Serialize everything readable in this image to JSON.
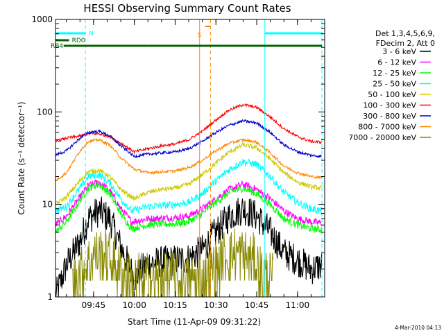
{
  "chart_data": {
    "type": "line",
    "title": "HESSI Observing Summary Count Rates",
    "xlabel": "Start Time (11-Apr-09 09:31:22)",
    "ylabel": "Count Rate (s⁻¹ detector⁻¹)",
    "xscale": "time (minutes)",
    "yscale": "log",
    "xlim": [
      "09:31",
      "11:10"
    ],
    "ylim": [
      1,
      1000
    ],
    "x_ticks": [
      "09:45",
      "10:00",
      "10:15",
      "10:30",
      "10:45",
      "11:00"
    ],
    "y_ticks": [
      "1",
      "10",
      "100",
      "1000"
    ],
    "grid": false,
    "legend": {
      "position": "right",
      "header": [
        "Det 1,3,4,5,6,9,",
        "FDecim 2, Att 0"
      ],
      "entries": [
        {
          "label": "3 - 6 keV",
          "color": "#000000"
        },
        {
          "label": "6 - 12 keV",
          "color": "#ff00ff"
        },
        {
          "label": "12 - 25 keV",
          "color": "#00ff00"
        },
        {
          "label": "25 - 50 keV",
          "color": "#00ffff"
        },
        {
          "label": "50 - 100 keV",
          "color": "#cccc00"
        },
        {
          "label": "100 - 300 keV",
          "color": "#ff0000"
        },
        {
          "label": "300 - 800 keV",
          "color": "#0000cc"
        },
        {
          "label": "800 - 7000 keV",
          "color": "#ff8800"
        },
        {
          "label": "7000 - 20000 keV",
          "color": "#888800"
        }
      ]
    },
    "series": [
      {
        "color": "#000000",
        "noise": 0.35,
        "points": [
          [
            "09:31",
            1.0
          ],
          [
            "09:35",
            2.2
          ],
          [
            "09:40",
            4.0
          ],
          [
            "09:43",
            7.0
          ],
          [
            "09:47",
            8.5
          ],
          [
            "09:51",
            7.0
          ],
          [
            "09:55",
            3.5
          ],
          [
            "10:00",
            1.6
          ],
          [
            "10:05",
            2.3
          ],
          [
            "10:15",
            2.5
          ],
          [
            "10:20",
            2.6
          ],
          [
            "10:25",
            3.2
          ],
          [
            "10:30",
            5.0
          ],
          [
            "10:35",
            7.5
          ],
          [
            "10:40",
            9.0
          ],
          [
            "10:45",
            7.5
          ],
          [
            "10:50",
            5.0
          ],
          [
            "10:55",
            3.0
          ],
          [
            "11:00",
            2.5
          ],
          [
            "11:05",
            2.0
          ],
          [
            "11:09",
            2.2
          ]
        ]
      },
      {
        "color": "#ff00ff",
        "noise": 0.08,
        "points": [
          [
            "09:31",
            6.0
          ],
          [
            "09:35",
            7.5
          ],
          [
            "09:40",
            12.0
          ],
          [
            "09:43",
            16.0
          ],
          [
            "09:47",
            17.5
          ],
          [
            "09:51",
            14.0
          ],
          [
            "09:55",
            9.0
          ],
          [
            "09:59",
            6.5
          ],
          [
            "10:05",
            7.0
          ],
          [
            "10:15",
            7.2
          ],
          [
            "10:20",
            7.5
          ],
          [
            "10:25",
            9.0
          ],
          [
            "10:30",
            11.5
          ],
          [
            "10:35",
            14.5
          ],
          [
            "10:40",
            16.5
          ],
          [
            "10:45",
            14.5
          ],
          [
            "10:50",
            11.5
          ],
          [
            "10:55",
            8.5
          ],
          [
            "11:00",
            7.0
          ],
          [
            "11:05",
            6.5
          ],
          [
            "11:09",
            6.3
          ]
        ]
      },
      {
        "color": "#00ff00",
        "noise": 0.08,
        "points": [
          [
            "09:31",
            5.0
          ],
          [
            "09:35",
            6.5
          ],
          [
            "09:40",
            11.0
          ],
          [
            "09:43",
            15.0
          ],
          [
            "09:47",
            16.5
          ],
          [
            "09:51",
            13.0
          ],
          [
            "09:55",
            8.0
          ],
          [
            "09:59",
            5.5
          ],
          [
            "10:05",
            6.0
          ],
          [
            "10:15",
            6.2
          ],
          [
            "10:20",
            6.5
          ],
          [
            "10:25",
            8.0
          ],
          [
            "10:30",
            10.5
          ],
          [
            "10:35",
            13.5
          ],
          [
            "10:40",
            15.0
          ],
          [
            "10:45",
            13.0
          ],
          [
            "10:50",
            10.0
          ],
          [
            "10:55",
            7.0
          ],
          [
            "11:00",
            6.0
          ],
          [
            "11:05",
            5.5
          ],
          [
            "11:09",
            5.3
          ]
        ]
      },
      {
        "color": "#00ffff",
        "noise": 0.08,
        "points": [
          [
            "09:31",
            8.5
          ],
          [
            "09:35",
            9.5
          ],
          [
            "09:40",
            15.0
          ],
          [
            "09:43",
            20.0
          ],
          [
            "09:47",
            21.0
          ],
          [
            "09:51",
            17.0
          ],
          [
            "09:55",
            11.5
          ],
          [
            "09:59",
            8.5
          ],
          [
            "10:05",
            9.5
          ],
          [
            "10:15",
            10.0
          ],
          [
            "10:20",
            10.5
          ],
          [
            "10:25",
            13.0
          ],
          [
            "10:30",
            18.0
          ],
          [
            "10:35",
            24.0
          ],
          [
            "10:40",
            29.0
          ],
          [
            "10:45",
            27.0
          ],
          [
            "10:50",
            20.0
          ],
          [
            "10:55",
            13.5
          ],
          [
            "11:00",
            10.5
          ],
          [
            "11:05",
            9.0
          ],
          [
            "11:09",
            8.5
          ]
        ]
      },
      {
        "color": "#cccc00",
        "noise": 0.05,
        "points": [
          [
            "09:31",
            10.0
          ],
          [
            "09:35",
            12.0
          ],
          [
            "09:40",
            18.0
          ],
          [
            "09:43",
            22.5
          ],
          [
            "09:47",
            23.5
          ],
          [
            "09:51",
            20.0
          ],
          [
            "09:55",
            14.5
          ],
          [
            "10:00",
            11.5
          ],
          [
            "10:05",
            13.5
          ],
          [
            "10:10",
            14.5
          ],
          [
            "10:15",
            15.0
          ],
          [
            "10:20",
            16.5
          ],
          [
            "10:25",
            21.0
          ],
          [
            "10:30",
            28.0
          ],
          [
            "10:35",
            37.0
          ],
          [
            "10:40",
            44.0
          ],
          [
            "10:45",
            41.0
          ],
          [
            "10:50",
            31.0
          ],
          [
            "10:55",
            22.0
          ],
          [
            "11:00",
            17.5
          ],
          [
            "11:05",
            15.5
          ],
          [
            "11:09",
            15.0
          ]
        ]
      },
      {
        "color": "#ff0000",
        "noise": 0.03,
        "points": [
          [
            "09:31",
            48.0
          ],
          [
            "09:35",
            52.0
          ],
          [
            "09:40",
            55.0
          ],
          [
            "09:43",
            58.0
          ],
          [
            "09:47",
            58.0
          ],
          [
            "09:51",
            54.0
          ],
          [
            "09:55",
            46.0
          ],
          [
            "10:00",
            37.0
          ],
          [
            "10:05",
            40.0
          ],
          [
            "10:10",
            43.0
          ],
          [
            "10:15",
            45.0
          ],
          [
            "10:20",
            50.0
          ],
          [
            "10:25",
            62.0
          ],
          [
            "10:30",
            82.0
          ],
          [
            "10:35",
            105.0
          ],
          [
            "10:40",
            120.0
          ],
          [
            "10:45",
            112.0
          ],
          [
            "10:50",
            88.0
          ],
          [
            "10:55",
            66.0
          ],
          [
            "11:00",
            54.0
          ],
          [
            "11:05",
            48.0
          ],
          [
            "11:09",
            47.0
          ]
        ]
      },
      {
        "color": "#0000cc",
        "noise": 0.03,
        "points": [
          [
            "09:31",
            34.0
          ],
          [
            "09:35",
            38.0
          ],
          [
            "09:40",
            52.0
          ],
          [
            "09:43",
            60.0
          ],
          [
            "09:47",
            62.0
          ],
          [
            "09:51",
            55.0
          ],
          [
            "09:55",
            43.0
          ],
          [
            "10:00",
            33.0
          ],
          [
            "10:05",
            35.0
          ],
          [
            "10:10",
            36.0
          ],
          [
            "10:15",
            37.0
          ],
          [
            "10:20",
            40.0
          ],
          [
            "10:25",
            48.0
          ],
          [
            "10:30",
            60.0
          ],
          [
            "10:35",
            72.0
          ],
          [
            "10:40",
            80.0
          ],
          [
            "10:45",
            76.0
          ],
          [
            "10:50",
            60.0
          ],
          [
            "10:55",
            44.0
          ],
          [
            "11:00",
            37.0
          ],
          [
            "11:05",
            34.0
          ],
          [
            "11:09",
            33.0
          ]
        ]
      },
      {
        "color": "#ff8800",
        "noise": 0.03,
        "points": [
          [
            "09:31",
            18.0
          ],
          [
            "09:35",
            22.0
          ],
          [
            "09:40",
            38.0
          ],
          [
            "09:43",
            48.0
          ],
          [
            "09:47",
            50.0
          ],
          [
            "09:51",
            44.0
          ],
          [
            "09:55",
            32.0
          ],
          [
            "10:00",
            24.0
          ],
          [
            "10:05",
            22.0
          ],
          [
            "10:10",
            22.5
          ],
          [
            "10:15",
            23.0
          ],
          [
            "10:20",
            25.0
          ],
          [
            "10:25",
            30.0
          ],
          [
            "10:30",
            38.0
          ],
          [
            "10:35",
            46.0
          ],
          [
            "10:40",
            50.0
          ],
          [
            "10:45",
            47.0
          ],
          [
            "10:50",
            36.0
          ],
          [
            "10:55",
            26.0
          ],
          [
            "11:00",
            22.0
          ],
          [
            "11:05",
            20.0
          ],
          [
            "11:09",
            19.5
          ]
        ]
      },
      {
        "color": "#888800",
        "noise": 0.5,
        "sparse": true,
        "points": [
          [
            "09:37",
            1.5
          ],
          [
            "09:41",
            2.0
          ],
          [
            "09:45",
            2.8
          ],
          [
            "09:48",
            3.0
          ],
          [
            "09:51",
            2.6
          ],
          [
            "09:54",
            2.0
          ],
          [
            "09:57",
            1.5
          ],
          [
            "10:25",
            1.5
          ],
          [
            "10:29",
            2.0
          ],
          [
            "10:33",
            2.6
          ],
          [
            "10:37",
            3.0
          ],
          [
            "10:41",
            2.8
          ],
          [
            "10:44",
            2.4
          ],
          [
            "10:47",
            1.8
          ],
          [
            "10:51",
            1.4
          ]
        ]
      }
    ],
    "flags": [
      {
        "label": "N",
        "color": "#00ffff",
        "segments": [
          [
            "09:31",
            "09:42"
          ],
          [
            "10:48",
            "11:09"
          ]
        ],
        "level": 1
      },
      {
        "label": "RD0",
        "color": "#006600",
        "segments": [
          [
            "09:31",
            "09:36"
          ]
        ],
        "level": 2
      },
      {
        "label": "RB4",
        "color": "#006600",
        "segments": [
          [
            "09:34",
            "10:05"
          ],
          [
            "10:05",
            "11:09"
          ]
        ],
        "level": 3
      },
      {
        "label": "S",
        "color": "#ff8800",
        "segments": [
          [
            "10:26",
            "10:28"
          ]
        ],
        "level": 0
      }
    ],
    "vlines": [
      {
        "time": "09:42",
        "color": "#00ffff",
        "style": "dashed"
      },
      {
        "time": "10:48",
        "color": "#00ffff",
        "style": "solid"
      },
      {
        "time": "11:09",
        "color": "#00ffff",
        "style": "dashed"
      },
      {
        "time": "10:24",
        "color": "#ff8800",
        "style": "solid"
      },
      {
        "time": "10:28",
        "color": "#ff8800",
        "style": "dashed"
      }
    ]
  },
  "timestamp": "4-Mar-2010 04:13"
}
